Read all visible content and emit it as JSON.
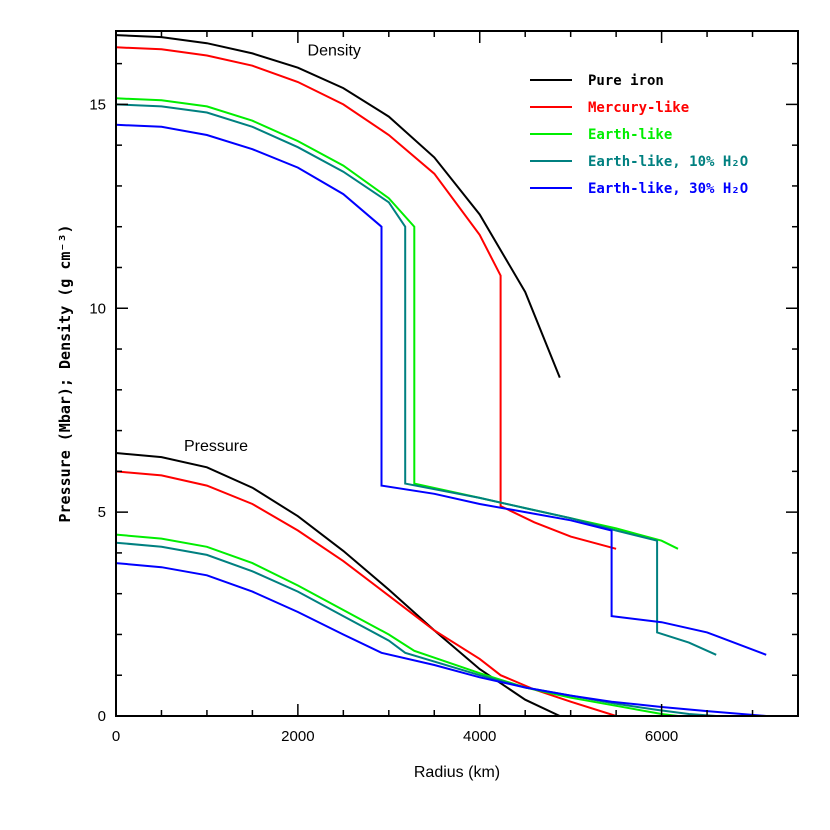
{
  "chart_data": {
    "type": "line",
    "xlabel": "Radius (km)",
    "ylabel": "Pressure (Mbar); Density (g cm⁻³)",
    "xlim": [
      0,
      7500
    ],
    "ylim": [
      0,
      16.8
    ],
    "x_ticks": [
      0,
      2000,
      4000,
      6000
    ],
    "y_ticks": [
      0,
      5,
      10,
      15
    ],
    "x_minor_step": 500,
    "y_minor_step": 1,
    "grid": false,
    "legend_position": "top-right",
    "annotations": [
      {
        "text": "Density",
        "x": 2400,
        "y": 16.2
      },
      {
        "text": "Pressure",
        "x": 1100,
        "y": 6.5
      }
    ],
    "legend": [
      {
        "label": "Pure iron",
        "color": "#000000"
      },
      {
        "label": "Mercury-like",
        "color": "#ff0000"
      },
      {
        "label": "Earth-like",
        "color": "#00ee00"
      },
      {
        "label": "Earth-like, 10% H₂O",
        "color": "#008080"
      },
      {
        "label": "Earth-like, 30% H₂O",
        "color": "#0000ff"
      }
    ],
    "series": [
      {
        "name": "Pure iron",
        "quantity": "density",
        "color": "#000000",
        "points": [
          [
            0,
            16.7
          ],
          [
            500,
            16.65
          ],
          [
            1000,
            16.5
          ],
          [
            1500,
            16.25
          ],
          [
            2000,
            15.9
          ],
          [
            2500,
            15.4
          ],
          [
            3000,
            14.7
          ],
          [
            3500,
            13.7
          ],
          [
            4000,
            12.3
          ],
          [
            4500,
            10.4
          ],
          [
            4880,
            8.3
          ]
        ]
      },
      {
        "name": "Mercury-like",
        "quantity": "density",
        "color": "#ff0000",
        "points": [
          [
            0,
            16.4
          ],
          [
            500,
            16.35
          ],
          [
            1000,
            16.2
          ],
          [
            1500,
            15.95
          ],
          [
            2000,
            15.55
          ],
          [
            2500,
            15.0
          ],
          [
            3000,
            14.25
          ],
          [
            3500,
            13.3
          ],
          [
            4000,
            11.8
          ],
          [
            4230,
            10.8
          ],
          [
            4230,
            5.15
          ],
          [
            4600,
            4.75
          ],
          [
            5000,
            4.4
          ],
          [
            5500,
            4.1
          ]
        ]
      },
      {
        "name": "Earth-like",
        "quantity": "density",
        "color": "#00ee00",
        "points": [
          [
            0,
            15.15
          ],
          [
            500,
            15.1
          ],
          [
            1000,
            14.95
          ],
          [
            1500,
            14.6
          ],
          [
            2000,
            14.1
          ],
          [
            2500,
            13.5
          ],
          [
            3000,
            12.7
          ],
          [
            3280,
            12.0
          ],
          [
            3280,
            5.7
          ],
          [
            4000,
            5.35
          ],
          [
            4500,
            5.1
          ],
          [
            5000,
            4.85
          ],
          [
            5500,
            4.6
          ],
          [
            6000,
            4.3
          ],
          [
            6180,
            4.1
          ]
        ]
      },
      {
        "name": "Earth-like, 10% H₂O",
        "quantity": "density",
        "color": "#008080",
        "points": [
          [
            0,
            15.0
          ],
          [
            500,
            14.95
          ],
          [
            1000,
            14.8
          ],
          [
            1500,
            14.45
          ],
          [
            2000,
            13.95
          ],
          [
            2500,
            13.35
          ],
          [
            3000,
            12.6
          ],
          [
            3180,
            12.0
          ],
          [
            3180,
            5.7
          ],
          [
            4000,
            5.35
          ],
          [
            4500,
            5.1
          ],
          [
            5000,
            4.85
          ],
          [
            5500,
            4.55
          ],
          [
            5950,
            4.3
          ],
          [
            5950,
            2.05
          ],
          [
            6300,
            1.8
          ],
          [
            6600,
            1.5
          ]
        ]
      },
      {
        "name": "Earth-like, 30% H₂O",
        "quantity": "density",
        "color": "#0000ff",
        "points": [
          [
            0,
            14.5
          ],
          [
            500,
            14.45
          ],
          [
            1000,
            14.25
          ],
          [
            1500,
            13.9
          ],
          [
            2000,
            13.45
          ],
          [
            2500,
            12.8
          ],
          [
            2920,
            12.0
          ],
          [
            2920,
            5.65
          ],
          [
            3500,
            5.45
          ],
          [
            4000,
            5.2
          ],
          [
            4500,
            5.0
          ],
          [
            5000,
            4.8
          ],
          [
            5450,
            4.55
          ],
          [
            5450,
            2.45
          ],
          [
            6000,
            2.3
          ],
          [
            6500,
            2.05
          ],
          [
            7150,
            1.5
          ]
        ]
      },
      {
        "name": "Pure iron",
        "quantity": "pressure",
        "color": "#000000",
        "points": [
          [
            0,
            6.45
          ],
          [
            500,
            6.35
          ],
          [
            1000,
            6.1
          ],
          [
            1500,
            5.6
          ],
          [
            2000,
            4.9
          ],
          [
            2500,
            4.05
          ],
          [
            3000,
            3.1
          ],
          [
            3500,
            2.1
          ],
          [
            4000,
            1.15
          ],
          [
            4500,
            0.4
          ],
          [
            4880,
            0.0
          ]
        ]
      },
      {
        "name": "Mercury-like",
        "quantity": "pressure",
        "color": "#ff0000",
        "points": [
          [
            0,
            6.0
          ],
          [
            500,
            5.9
          ],
          [
            1000,
            5.65
          ],
          [
            1500,
            5.2
          ],
          [
            2000,
            4.55
          ],
          [
            2500,
            3.8
          ],
          [
            3000,
            2.95
          ],
          [
            3500,
            2.1
          ],
          [
            4000,
            1.4
          ],
          [
            4230,
            1.0
          ],
          [
            4600,
            0.65
          ],
          [
            5000,
            0.35
          ],
          [
            5500,
            0.0
          ]
        ]
      },
      {
        "name": "Earth-like",
        "quantity": "pressure",
        "color": "#00ee00",
        "points": [
          [
            0,
            4.45
          ],
          [
            500,
            4.35
          ],
          [
            1000,
            4.15
          ],
          [
            1500,
            3.75
          ],
          [
            2000,
            3.2
          ],
          [
            2500,
            2.6
          ],
          [
            3000,
            2.0
          ],
          [
            3280,
            1.6
          ],
          [
            4000,
            1.05
          ],
          [
            4500,
            0.7
          ],
          [
            5000,
            0.45
          ],
          [
            5500,
            0.25
          ],
          [
            6000,
            0.05
          ],
          [
            6180,
            0.0
          ]
        ]
      },
      {
        "name": "Earth-like, 10% H₂O",
        "quantity": "pressure",
        "color": "#008080",
        "points": [
          [
            0,
            4.25
          ],
          [
            500,
            4.15
          ],
          [
            1000,
            3.95
          ],
          [
            1500,
            3.55
          ],
          [
            2000,
            3.05
          ],
          [
            2500,
            2.45
          ],
          [
            3000,
            1.85
          ],
          [
            3180,
            1.55
          ],
          [
            4000,
            1.0
          ],
          [
            4500,
            0.7
          ],
          [
            5000,
            0.5
          ],
          [
            5500,
            0.3
          ],
          [
            5950,
            0.15
          ],
          [
            6300,
            0.05
          ],
          [
            6600,
            0.0
          ]
        ]
      },
      {
        "name": "Earth-like, 30% H₂O",
        "quantity": "pressure",
        "color": "#0000ff",
        "points": [
          [
            0,
            3.75
          ],
          [
            500,
            3.65
          ],
          [
            1000,
            3.45
          ],
          [
            1500,
            3.05
          ],
          [
            2000,
            2.55
          ],
          [
            2500,
            2.0
          ],
          [
            2920,
            1.55
          ],
          [
            3500,
            1.25
          ],
          [
            4000,
            0.95
          ],
          [
            4500,
            0.7
          ],
          [
            5000,
            0.5
          ],
          [
            5450,
            0.35
          ],
          [
            6000,
            0.22
          ],
          [
            6500,
            0.12
          ],
          [
            7150,
            0.0
          ]
        ]
      }
    ]
  }
}
